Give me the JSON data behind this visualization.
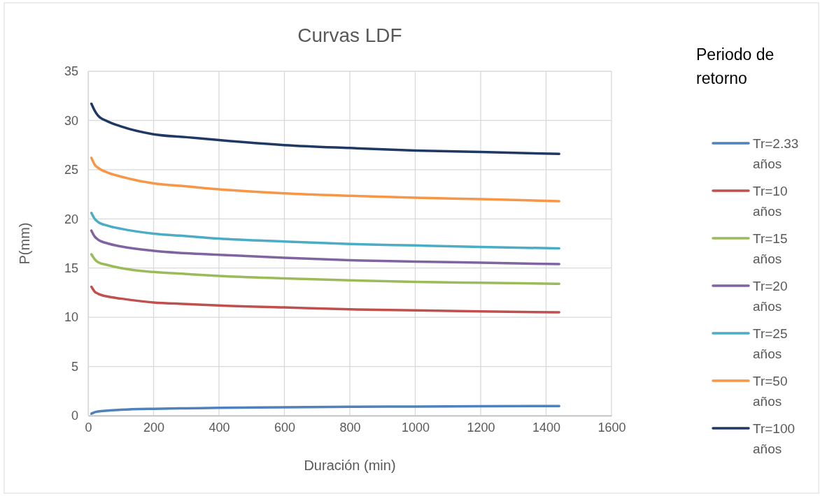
{
  "chart_data": {
    "type": "line",
    "title": "Curvas LDF",
    "xlabel": "Duración (min)",
    "ylabel": "P(mm)",
    "legend_title": "Periodo de retorno",
    "legend": "right",
    "grid": true,
    "marker": "none",
    "line_style": "solid",
    "x": [
      10,
      20,
      30,
      60,
      100,
      200,
      300,
      400,
      600,
      800,
      1000,
      1200,
      1440
    ],
    "xlim": [
      0,
      1600
    ],
    "xticks": [
      0,
      200,
      400,
      600,
      800,
      1000,
      1200,
      1400,
      1600
    ],
    "ylim": [
      0,
      35
    ],
    "yticks": [
      0,
      5,
      10,
      15,
      20,
      25,
      30,
      35
    ],
    "series": [
      {
        "name": "Tr=2.33 años",
        "color": "#4f81bd",
        "values": [
          0.2,
          0.35,
          0.42,
          0.52,
          0.6,
          0.7,
          0.75,
          0.8,
          0.85,
          0.9,
          0.93,
          0.95,
          0.98
        ]
      },
      {
        "name": "Tr=10 años",
        "color": "#c0504d",
        "values": [
          13.1,
          12.6,
          12.4,
          12.1,
          11.9,
          11.5,
          11.35,
          11.2,
          11.0,
          10.8,
          10.7,
          10.6,
          10.5
        ]
      },
      {
        "name": "Tr=15 años",
        "color": "#9bbb59",
        "values": [
          16.4,
          15.9,
          15.6,
          15.3,
          15.0,
          14.6,
          14.4,
          14.2,
          13.95,
          13.75,
          13.6,
          13.5,
          13.4
        ]
      },
      {
        "name": "Tr=20 años",
        "color": "#8064a2",
        "values": [
          18.8,
          18.2,
          17.9,
          17.5,
          17.2,
          16.75,
          16.5,
          16.35,
          16.05,
          15.8,
          15.65,
          15.55,
          15.4
        ]
      },
      {
        "name": "Tr=25 años",
        "color": "#4bacc6",
        "values": [
          20.6,
          20.0,
          19.7,
          19.3,
          19.0,
          18.5,
          18.25,
          18.0,
          17.7,
          17.45,
          17.3,
          17.15,
          17.0
        ]
      },
      {
        "name": "Tr=50 años",
        "color": "#f79646",
        "values": [
          26.2,
          25.5,
          25.2,
          24.7,
          24.3,
          23.6,
          23.3,
          23.0,
          22.6,
          22.35,
          22.15,
          22.0,
          21.8
        ]
      },
      {
        "name": "Tr=100 años",
        "color": "#1f3864",
        "values": [
          31.7,
          31.0,
          30.5,
          29.9,
          29.4,
          28.6,
          28.3,
          28.0,
          27.5,
          27.2,
          26.95,
          26.8,
          26.6
        ]
      }
    ]
  }
}
